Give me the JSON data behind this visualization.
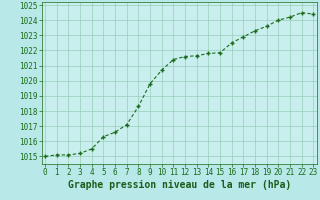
{
  "x": [
    0,
    1,
    2,
    3,
    4,
    5,
    6,
    7,
    8,
    9,
    10,
    11,
    12,
    13,
    14,
    15,
    16,
    17,
    18,
    19,
    20,
    21,
    22,
    23
  ],
  "y": [
    1015.0,
    1015.1,
    1015.1,
    1015.2,
    1015.5,
    1016.3,
    1016.6,
    1017.1,
    1018.3,
    1019.8,
    1020.7,
    1021.4,
    1021.6,
    1021.65,
    1021.8,
    1021.85,
    1022.5,
    1022.9,
    1023.3,
    1023.6,
    1024.0,
    1024.2,
    1024.5,
    1024.4
  ],
  "ylim": [
    1014.5,
    1025.2
  ],
  "xlim": [
    -0.3,
    23.3
  ],
  "yticks": [
    1015,
    1016,
    1017,
    1018,
    1019,
    1020,
    1021,
    1022,
    1023,
    1024,
    1025
  ],
  "xticks": [
    0,
    1,
    2,
    3,
    4,
    5,
    6,
    7,
    8,
    9,
    10,
    11,
    12,
    13,
    14,
    15,
    16,
    17,
    18,
    19,
    20,
    21,
    22,
    23
  ],
  "line_color": "#1a6b1a",
  "marker_color": "#1a6b1a",
  "bg_color": "#b8e8e8",
  "plot_bg_color": "#c8eeee",
  "grid_color": "#99ccbb",
  "xlabel": "Graphe pression niveau de la mer (hPa)",
  "xlabel_color": "#1a5c1a",
  "tick_color": "#1a6b1a",
  "label_fontsize": 7,
  "tick_fontsize": 5.5
}
